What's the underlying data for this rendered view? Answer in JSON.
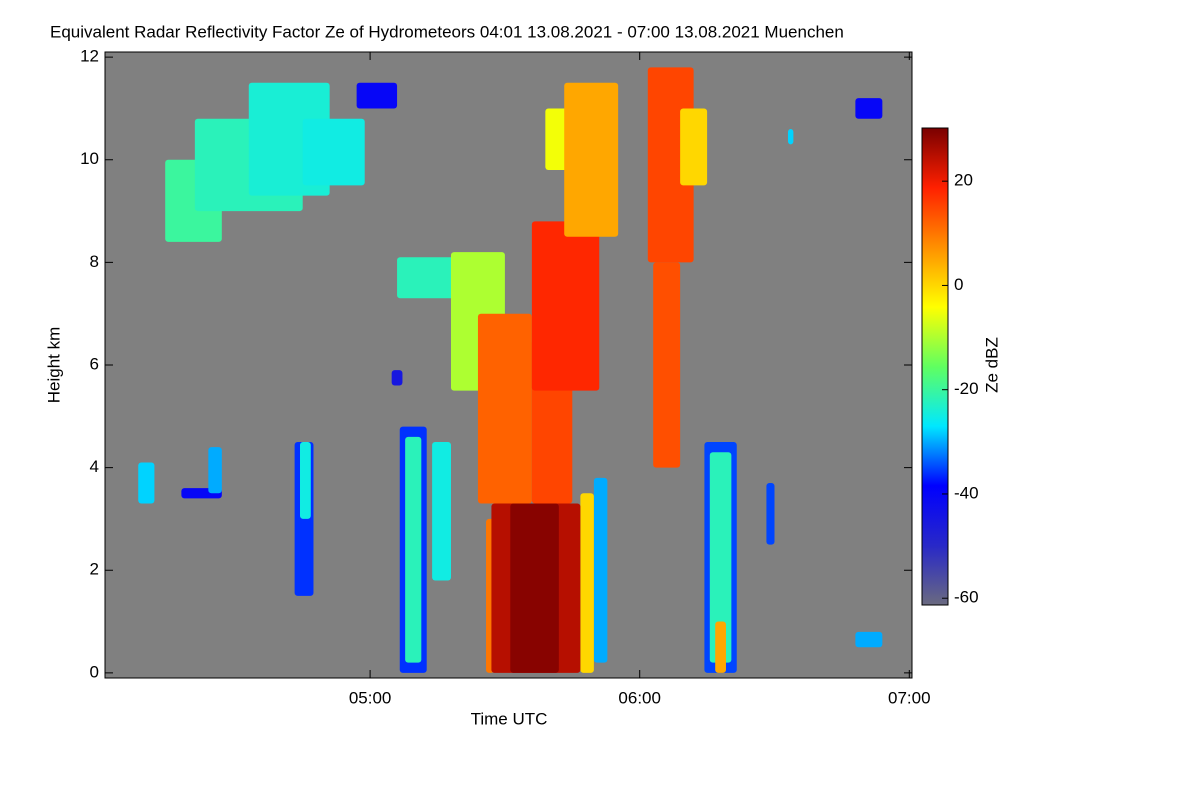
{
  "chart_data": {
    "type": "heatmap",
    "title": "Equivalent Radar Reflectivity Factor Ze of Hydrometeors   04:01 13.08.2021 - 07:00 13.08.2021 Muenchen",
    "x_label": "Time UTC",
    "y_label": "Height km",
    "colorbar_label": "Ze dBZ",
    "xlim": [
      4.0167,
      7.01
    ],
    "xticks": [
      {
        "value": 5,
        "label": "05:00"
      },
      {
        "value": 6,
        "label": "06:00"
      },
      {
        "value": 7,
        "label": "07:00"
      }
    ],
    "ylim": [
      -0.1,
      12.1
    ],
    "yticks": [
      0,
      2,
      4,
      6,
      8,
      10,
      12
    ],
    "clim": [
      -61.3,
      30.2
    ],
    "cticks": [
      -60,
      -40,
      -20,
      0,
      20
    ],
    "colormap": [
      "#6a6a80",
      "#2828c8",
      "#0000ff",
      "#00e8ff",
      "#60ff60",
      "#ffff00",
      "#ff9000",
      "#ff2000",
      "#7a0000"
    ],
    "background": "#808080",
    "cells": [
      {
        "x": [
          4.24,
          4.45
        ],
        "y": [
          8.4,
          10.0
        ],
        "z": -20
      },
      {
        "x": [
          4.35,
          4.75
        ],
        "y": [
          9.0,
          10.8
        ],
        "z": -22
      },
      {
        "x": [
          4.55,
          4.85
        ],
        "y": [
          9.3,
          11.5
        ],
        "z": -24
      },
      {
        "x": [
          4.75,
          4.98
        ],
        "y": [
          9.5,
          10.8
        ],
        "z": -25
      },
      {
        "x": [
          4.95,
          5.1
        ],
        "y": [
          11.0,
          11.5
        ],
        "z": -40
      },
      {
        "x": [
          4.14,
          4.2
        ],
        "y": [
          3.3,
          4.1
        ],
        "z": -28
      },
      {
        "x": [
          4.3,
          4.45
        ],
        "y": [
          3.4,
          3.6
        ],
        "z": -40
      },
      {
        "x": [
          4.4,
          4.45
        ],
        "y": [
          3.5,
          4.4
        ],
        "z": -30
      },
      {
        "x": [
          4.72,
          4.79
        ],
        "y": [
          1.5,
          4.5
        ],
        "z": -36
      },
      {
        "x": [
          4.74,
          4.78
        ],
        "y": [
          3.0,
          4.5
        ],
        "z": -25
      },
      {
        "x": [
          5.08,
          5.12
        ],
        "y": [
          5.6,
          5.9
        ],
        "z": -45
      },
      {
        "x": [
          5.11,
          5.21
        ],
        "y": [
          0.0,
          4.8
        ],
        "z": -36
      },
      {
        "x": [
          5.13,
          5.19
        ],
        "y": [
          0.2,
          4.6
        ],
        "z": -22
      },
      {
        "x": [
          5.23,
          5.3
        ],
        "y": [
          1.8,
          4.5
        ],
        "z": -25
      },
      {
        "x": [
          5.1,
          5.4
        ],
        "y": [
          7.3,
          8.1
        ],
        "z": -22
      },
      {
        "x": [
          5.3,
          5.5
        ],
        "y": [
          5.5,
          8.2
        ],
        "z": -10
      },
      {
        "x": [
          5.4,
          5.6
        ],
        "y": [
          3.3,
          7.0
        ],
        "z": 12
      },
      {
        "x": [
          5.6,
          5.75
        ],
        "y": [
          3.3,
          6.5
        ],
        "z": 15
      },
      {
        "x": [
          5.6,
          5.85
        ],
        "y": [
          5.5,
          8.8
        ],
        "z": 18
      },
      {
        "x": [
          5.65,
          5.75
        ],
        "y": [
          9.8,
          11.0
        ],
        "z": -5
      },
      {
        "x": [
          5.72,
          5.92
        ],
        "y": [
          8.5,
          11.5
        ],
        "z": 5
      },
      {
        "x": [
          5.83,
          5.88
        ],
        "y": [
          0.2,
          3.8
        ],
        "z": -30
      },
      {
        "x": [
          5.78,
          5.83
        ],
        "y": [
          0.0,
          3.5
        ],
        "z": 0
      },
      {
        "x": [
          5.43,
          5.46
        ],
        "y": [
          0.0,
          3.0
        ],
        "z": 10
      },
      {
        "x": [
          5.45,
          5.78
        ],
        "y": [
          0.0,
          3.3
        ],
        "z": 25
      },
      {
        "x": [
          5.52,
          5.7
        ],
        "y": [
          0.0,
          3.3
        ],
        "z": 29
      },
      {
        "x": [
          6.05,
          6.15
        ],
        "y": [
          4.0,
          8.0
        ],
        "z": 14
      },
      {
        "x": [
          6.03,
          6.2
        ],
        "y": [
          8.0,
          11.8
        ],
        "z": 15
      },
      {
        "x": [
          6.15,
          6.25
        ],
        "y": [
          9.5,
          11.0
        ],
        "z": 0
      },
      {
        "x": [
          6.24,
          6.36
        ],
        "y": [
          0.0,
          4.5
        ],
        "z": -35
      },
      {
        "x": [
          6.26,
          6.34
        ],
        "y": [
          0.2,
          4.3
        ],
        "z": -22
      },
      {
        "x": [
          6.28,
          6.32
        ],
        "y": [
          0.0,
          1.0
        ],
        "z": 5
      },
      {
        "x": [
          6.47,
          6.5
        ],
        "y": [
          2.5,
          3.7
        ],
        "z": -35
      },
      {
        "x": [
          6.55,
          6.57
        ],
        "y": [
          10.3,
          10.6
        ],
        "z": -28
      },
      {
        "x": [
          6.8,
          6.9
        ],
        "y": [
          10.8,
          11.2
        ],
        "z": -40
      },
      {
        "x": [
          6.8,
          6.9
        ],
        "y": [
          0.5,
          0.8
        ],
        "z": -30
      }
    ]
  }
}
